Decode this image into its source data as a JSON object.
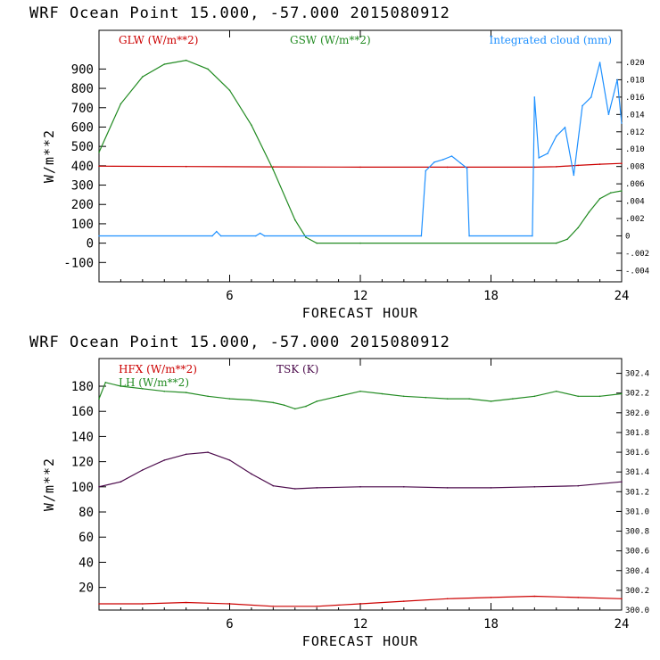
{
  "chart_data": [
    {
      "type": "line",
      "title": "WRF   Ocean Point   15.000, -57.000  2015080912",
      "xlabel": "FORECAST HOUR",
      "ylabel": "W/m**2",
      "xlim": [
        0,
        24
      ],
      "ylim": [
        -200,
        1100
      ],
      "x_ticks": [
        6,
        12,
        18,
        24
      ],
      "y_ticks": [
        -100,
        0,
        100,
        200,
        300,
        400,
        500,
        600,
        700,
        800,
        900
      ],
      "y2label": "",
      "y2lim": [
        -0.0053,
        0.0237
      ],
      "y2_ticks": [
        {
          "value": -0.004,
          "label": "-.004"
        },
        {
          "value": -0.002,
          "label": "-.002"
        },
        {
          "value": 0,
          "label": "0"
        },
        {
          "value": 0.002,
          "label": ".002"
        },
        {
          "value": 0.004,
          "label": ".004"
        },
        {
          "value": 0.006,
          "label": ".006"
        },
        {
          "value": 0.008,
          "label": ".008"
        },
        {
          "value": 0.01,
          "label": ".010"
        },
        {
          "value": 0.012,
          "label": ".012"
        },
        {
          "value": 0.014,
          "label": ".014"
        },
        {
          "value": 0.016,
          "label": ".016"
        },
        {
          "value": 0.018,
          "label": ".018"
        },
        {
          "value": 0.02,
          "label": ".020"
        }
      ],
      "legend_placement": "top",
      "series": [
        {
          "name": "GLW (W/m**2)",
          "color": "#cc0000",
          "axis": "left",
          "x": [
            0,
            4,
            8,
            12,
            16,
            20,
            21,
            22,
            23,
            24
          ],
          "y": [
            398,
            396,
            394,
            393,
            393,
            393,
            395,
            402,
            408,
            412
          ]
        },
        {
          "name": "GSW (W/m**2)",
          "color": "#228b22",
          "axis": "left",
          "x": [
            0,
            1,
            2,
            3,
            4,
            5,
            6,
            7,
            8,
            9,
            9.5,
            10,
            12,
            21,
            21.5,
            22,
            22.5,
            23,
            23.5,
            24
          ],
          "y": [
            470,
            720,
            860,
            925,
            945,
            900,
            790,
            610,
            380,
            120,
            30,
            0,
            0,
            0,
            20,
            80,
            160,
            230,
            260,
            270
          ]
        },
        {
          "name": "Integrated cloud (mm)",
          "color": "#1e90ff",
          "axis": "right",
          "x": [
            0,
            5.2,
            5.4,
            5.6,
            7.2,
            7.4,
            7.6,
            14.8,
            15.0,
            15.4,
            15.8,
            16.2,
            16.6,
            16.9,
            17.0,
            19.9,
            20.0,
            20.2,
            20.6,
            21.0,
            21.4,
            21.8,
            22.2,
            22.6,
            23.0,
            23.4,
            23.8,
            24
          ],
          "y": [
            0,
            0,
            0.0005,
            0,
            0,
            0.0003,
            0,
            0,
            0.0075,
            0.0085,
            0.0088,
            0.0092,
            0.0084,
            0.0078,
            0,
            0,
            0.016,
            0.009,
            0.0095,
            0.0115,
            0.0125,
            0.007,
            0.015,
            0.016,
            0.02,
            0.014,
            0.018,
            0.013
          ]
        }
      ]
    },
    {
      "type": "line",
      "title": "WRF   Ocean Point   15.000, -57.000  2015080912",
      "xlabel": "FORECAST HOUR",
      "ylabel": "W/m**2",
      "xlim": [
        0,
        24
      ],
      "ylim": [
        2,
        202
      ],
      "x_ticks": [
        6,
        12,
        18,
        24
      ],
      "y_ticks": [
        20,
        40,
        60,
        80,
        100,
        120,
        140,
        160,
        180
      ],
      "y2label": "",
      "y2lim": [
        300.0,
        302.55
      ],
      "y2_ticks": [
        {
          "value": 300.0,
          "label": "300.0"
        },
        {
          "value": 300.2,
          "label": "300.2"
        },
        {
          "value": 300.4,
          "label": "300.4"
        },
        {
          "value": 300.6,
          "label": "300.6"
        },
        {
          "value": 300.8,
          "label": "300.8"
        },
        {
          "value": 301.0,
          "label": "301.0"
        },
        {
          "value": 301.2,
          "label": "301.2"
        },
        {
          "value": 301.4,
          "label": "301.4"
        },
        {
          "value": 301.6,
          "label": "301.6"
        },
        {
          "value": 301.8,
          "label": "301.8"
        },
        {
          "value": 302.0,
          "label": "302.0"
        },
        {
          "value": 302.2,
          "label": "302.2"
        },
        {
          "value": 302.4,
          "label": "302.4"
        }
      ],
      "legend_placement": "top-left",
      "series": [
        {
          "name": "HFX (W/m**2)",
          "color": "#cc0000",
          "axis": "left",
          "x": [
            0,
            2,
            4,
            6,
            8,
            10,
            12,
            14,
            16,
            18,
            20,
            22,
            24
          ],
          "y": [
            7,
            7,
            8,
            7,
            5,
            5,
            7,
            9,
            11,
            12,
            13,
            12,
            11
          ]
        },
        {
          "name": "LH (W/m**2)",
          "color": "#228b22",
          "axis": "left",
          "x": [
            0,
            0.3,
            1,
            2,
            3,
            4,
            5,
            6,
            7,
            8,
            8.5,
            9,
            9.5,
            10,
            11,
            12,
            13,
            14,
            15,
            16,
            17,
            18,
            19,
            20,
            21,
            22,
            23,
            24
          ],
          "y": [
            170,
            183,
            180,
            178,
            176,
            175,
            172,
            170,
            169,
            167,
            165,
            162,
            164,
            168,
            172,
            176,
            174,
            172,
            171,
            170,
            170,
            168,
            170,
            172,
            176,
            172,
            172,
            174
          ]
        },
        {
          "name": "TSK (K)",
          "color": "#4b0a4b",
          "axis": "right",
          "x": [
            0,
            1,
            2,
            3,
            4,
            5,
            6,
            7,
            8,
            9,
            10,
            12,
            14,
            16,
            18,
            20,
            22,
            24
          ],
          "y": [
            301.25,
            301.3,
            301.42,
            301.52,
            301.58,
            301.6,
            301.52,
            301.38,
            301.26,
            301.23,
            301.24,
            301.25,
            301.25,
            301.24,
            301.24,
            301.25,
            301.26,
            301.3
          ]
        }
      ]
    }
  ]
}
